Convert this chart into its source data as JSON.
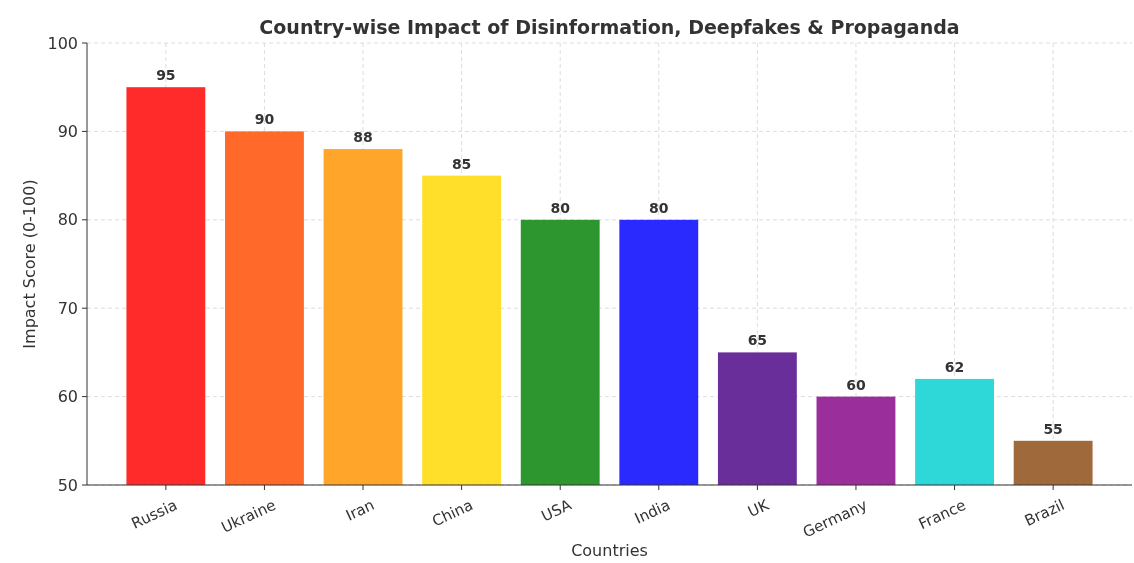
{
  "chart_data": {
    "type": "bar",
    "title": "Country-wise Impact of Disinformation, Deepfakes & Propaganda",
    "xlabel": "Countries",
    "ylabel": "Impact Score (0-100)",
    "categories": [
      "Russia",
      "Ukraine",
      "Iran",
      "China",
      "USA",
      "India",
      "UK",
      "Germany",
      "France",
      "Brazil"
    ],
    "values": [
      95,
      90,
      88,
      85,
      80,
      80,
      65,
      60,
      62,
      55
    ],
    "colors": [
      "#ff2a2a",
      "#ff6a2a",
      "#ffa52a",
      "#ffdf2a",
      "#2e962e",
      "#2a2aff",
      "#6a2e9a",
      "#9a2e9a",
      "#2ed8d8",
      "#a0693c"
    ],
    "ylim": [
      50,
      100
    ],
    "yticks": [
      50,
      60,
      70,
      80,
      90,
      100
    ],
    "grid": true,
    "data_labels": true
  }
}
